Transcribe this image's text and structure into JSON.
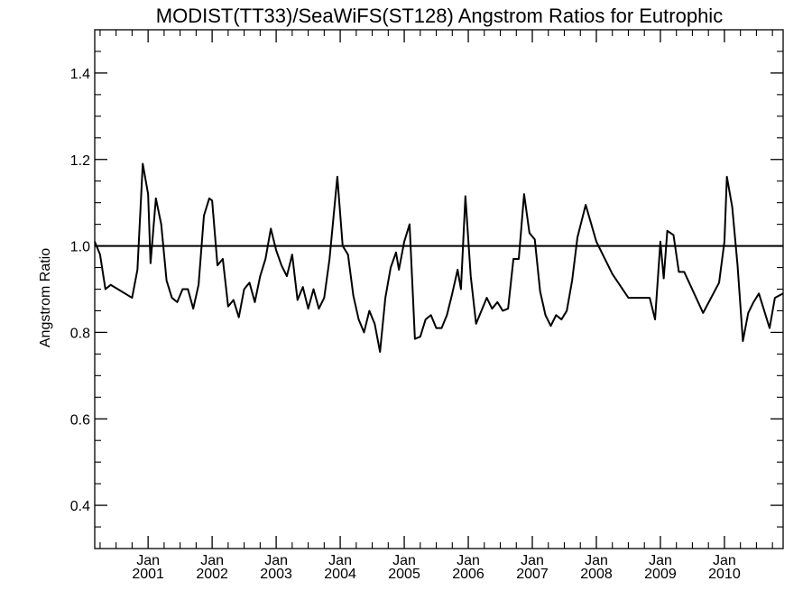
{
  "chart_data": {
    "type": "line",
    "title": "MODIST(TT33)/SeaWiFS(ST128)  Angstrom Ratios for Eutrophic",
    "xlabel": "",
    "ylabel": "Angstrom Ratio",
    "ylim": [
      0.3,
      1.5
    ],
    "xlim": [
      "2000-03-01",
      "2010-12-01"
    ],
    "y_ticks": [
      {
        "value": 0.4,
        "label": "0.4"
      },
      {
        "value": 0.6,
        "label": "0.6"
      },
      {
        "value": 0.8,
        "label": "0.8"
      },
      {
        "value": 1.0,
        "label": "1.0"
      },
      {
        "value": 1.2,
        "label": "1.2"
      },
      {
        "value": 1.4,
        "label": "1.4"
      }
    ],
    "x_ticks": [
      {
        "date": "2001-01-01",
        "month": "Jan",
        "year": "2001"
      },
      {
        "date": "2002-01-01",
        "month": "Jan",
        "year": "2002"
      },
      {
        "date": "2003-01-01",
        "month": "Jan",
        "year": "2003"
      },
      {
        "date": "2004-01-01",
        "month": "Jan",
        "year": "2004"
      },
      {
        "date": "2005-01-01",
        "month": "Jan",
        "year": "2005"
      },
      {
        "date": "2006-01-01",
        "month": "Jan",
        "year": "2006"
      },
      {
        "date": "2007-01-01",
        "month": "Jan",
        "year": "2007"
      },
      {
        "date": "2008-01-01",
        "month": "Jan",
        "year": "2008"
      },
      {
        "date": "2009-01-01",
        "month": "Jan",
        "year": "2009"
      },
      {
        "date": "2010-01-01",
        "month": "Jan",
        "year": "2010"
      }
    ],
    "reference_line": {
      "y": 1.0
    },
    "grid": false,
    "series": [
      {
        "color": "#000000",
        "points": [
          [
            "2000-03-01",
            1.01
          ],
          [
            "2000-04-01",
            0.98
          ],
          [
            "2000-05-01",
            0.9
          ],
          [
            "2000-06-01",
            0.91
          ],
          [
            "2000-10-01",
            0.88
          ],
          [
            "2000-11-01",
            0.945
          ],
          [
            "2000-12-01",
            1.19
          ],
          [
            "2001-01-01",
            1.12
          ],
          [
            "2001-01-15",
            0.96
          ],
          [
            "2001-02-15",
            1.11
          ],
          [
            "2001-03-15",
            1.05
          ],
          [
            "2001-04-15",
            0.92
          ],
          [
            "2001-05-15",
            0.88
          ],
          [
            "2001-06-15",
            0.87
          ],
          [
            "2001-07-15",
            0.9
          ],
          [
            "2001-08-15",
            0.9
          ],
          [
            "2001-09-15",
            0.855
          ],
          [
            "2001-10-15",
            0.91
          ],
          [
            "2001-11-15",
            1.07
          ],
          [
            "2001-12-15",
            1.11
          ],
          [
            "2002-01-01",
            1.105
          ],
          [
            "2002-02-01",
            0.955
          ],
          [
            "2002-03-01",
            0.97
          ],
          [
            "2002-04-01",
            0.86
          ],
          [
            "2002-05-01",
            0.875
          ],
          [
            "2002-06-01",
            0.835
          ],
          [
            "2002-07-01",
            0.9
          ],
          [
            "2002-08-01",
            0.915
          ],
          [
            "2002-09-01",
            0.87
          ],
          [
            "2002-10-01",
            0.93
          ],
          [
            "2002-11-01",
            0.97
          ],
          [
            "2002-12-01",
            1.04
          ],
          [
            "2003-01-01",
            0.99
          ],
          [
            "2003-02-01",
            0.955
          ],
          [
            "2003-03-01",
            0.93
          ],
          [
            "2003-04-01",
            0.98
          ],
          [
            "2003-05-01",
            0.875
          ],
          [
            "2003-06-01",
            0.905
          ],
          [
            "2003-07-01",
            0.855
          ],
          [
            "2003-08-01",
            0.9
          ],
          [
            "2003-09-01",
            0.855
          ],
          [
            "2003-10-01",
            0.88
          ],
          [
            "2003-11-01",
            0.97
          ],
          [
            "2003-12-15",
            1.16
          ],
          [
            "2004-01-15",
            1.0
          ],
          [
            "2004-02-15",
            0.98
          ],
          [
            "2004-03-15",
            0.885
          ],
          [
            "2004-04-15",
            0.83
          ],
          [
            "2004-05-15",
            0.8
          ],
          [
            "2004-06-15",
            0.85
          ],
          [
            "2004-07-15",
            0.82
          ],
          [
            "2004-08-15",
            0.755
          ],
          [
            "2004-09-15",
            0.88
          ],
          [
            "2004-10-15",
            0.95
          ],
          [
            "2004-11-15",
            0.985
          ],
          [
            "2004-12-01",
            0.945
          ],
          [
            "2005-01-01",
            1.01
          ],
          [
            "2005-02-01",
            1.05
          ],
          [
            "2005-03-01",
            0.785
          ],
          [
            "2005-04-01",
            0.79
          ],
          [
            "2005-05-01",
            0.83
          ],
          [
            "2005-06-01",
            0.84
          ],
          [
            "2005-07-01",
            0.81
          ],
          [
            "2005-08-01",
            0.81
          ],
          [
            "2005-09-01",
            0.84
          ],
          [
            "2005-10-01",
            0.89
          ],
          [
            "2005-11-01",
            0.945
          ],
          [
            "2005-11-20",
            0.9
          ],
          [
            "2005-12-15",
            1.115
          ],
          [
            "2006-01-15",
            0.93
          ],
          [
            "2006-02-15",
            0.82
          ],
          [
            "2006-03-15",
            0.85
          ],
          [
            "2006-04-15",
            0.88
          ],
          [
            "2006-05-15",
            0.855
          ],
          [
            "2006-06-15",
            0.87
          ],
          [
            "2006-07-15",
            0.85
          ],
          [
            "2006-08-15",
            0.855
          ],
          [
            "2006-09-15",
            0.97
          ],
          [
            "2006-10-15",
            0.97
          ],
          [
            "2006-11-15",
            1.12
          ],
          [
            "2006-12-15",
            1.03
          ],
          [
            "2007-01-15",
            1.015
          ],
          [
            "2007-02-15",
            0.895
          ],
          [
            "2007-03-15",
            0.84
          ],
          [
            "2007-04-15",
            0.815
          ],
          [
            "2007-05-15",
            0.84
          ],
          [
            "2007-06-15",
            0.83
          ],
          [
            "2007-07-15",
            0.85
          ],
          [
            "2007-08-15",
            0.92
          ],
          [
            "2007-09-15",
            1.02
          ],
          [
            "2007-11-01",
            1.095
          ],
          [
            "2008-01-01",
            1.01
          ],
          [
            "2008-04-01",
            0.935
          ],
          [
            "2008-07-01",
            0.88
          ],
          [
            "2008-11-01",
            0.88
          ],
          [
            "2008-12-01",
            0.83
          ],
          [
            "2009-01-01",
            1.01
          ],
          [
            "2009-01-20",
            0.925
          ],
          [
            "2009-02-10",
            1.035
          ],
          [
            "2009-03-15",
            1.025
          ],
          [
            "2009-04-15",
            0.94
          ],
          [
            "2009-05-15",
            0.94
          ],
          [
            "2009-09-01",
            0.845
          ],
          [
            "2009-12-01",
            0.915
          ],
          [
            "2010-01-01",
            1.01
          ],
          [
            "2010-01-15",
            1.16
          ],
          [
            "2010-02-15",
            1.09
          ],
          [
            "2010-03-15",
            0.955
          ],
          [
            "2010-04-15",
            0.78
          ],
          [
            "2010-05-15",
            0.845
          ],
          [
            "2010-06-15",
            0.87
          ],
          [
            "2010-07-15",
            0.89
          ],
          [
            "2010-08-15",
            0.85
          ],
          [
            "2010-09-15",
            0.81
          ],
          [
            "2010-10-15",
            0.88
          ],
          [
            "2010-12-01",
            0.89
          ]
        ]
      }
    ]
  }
}
